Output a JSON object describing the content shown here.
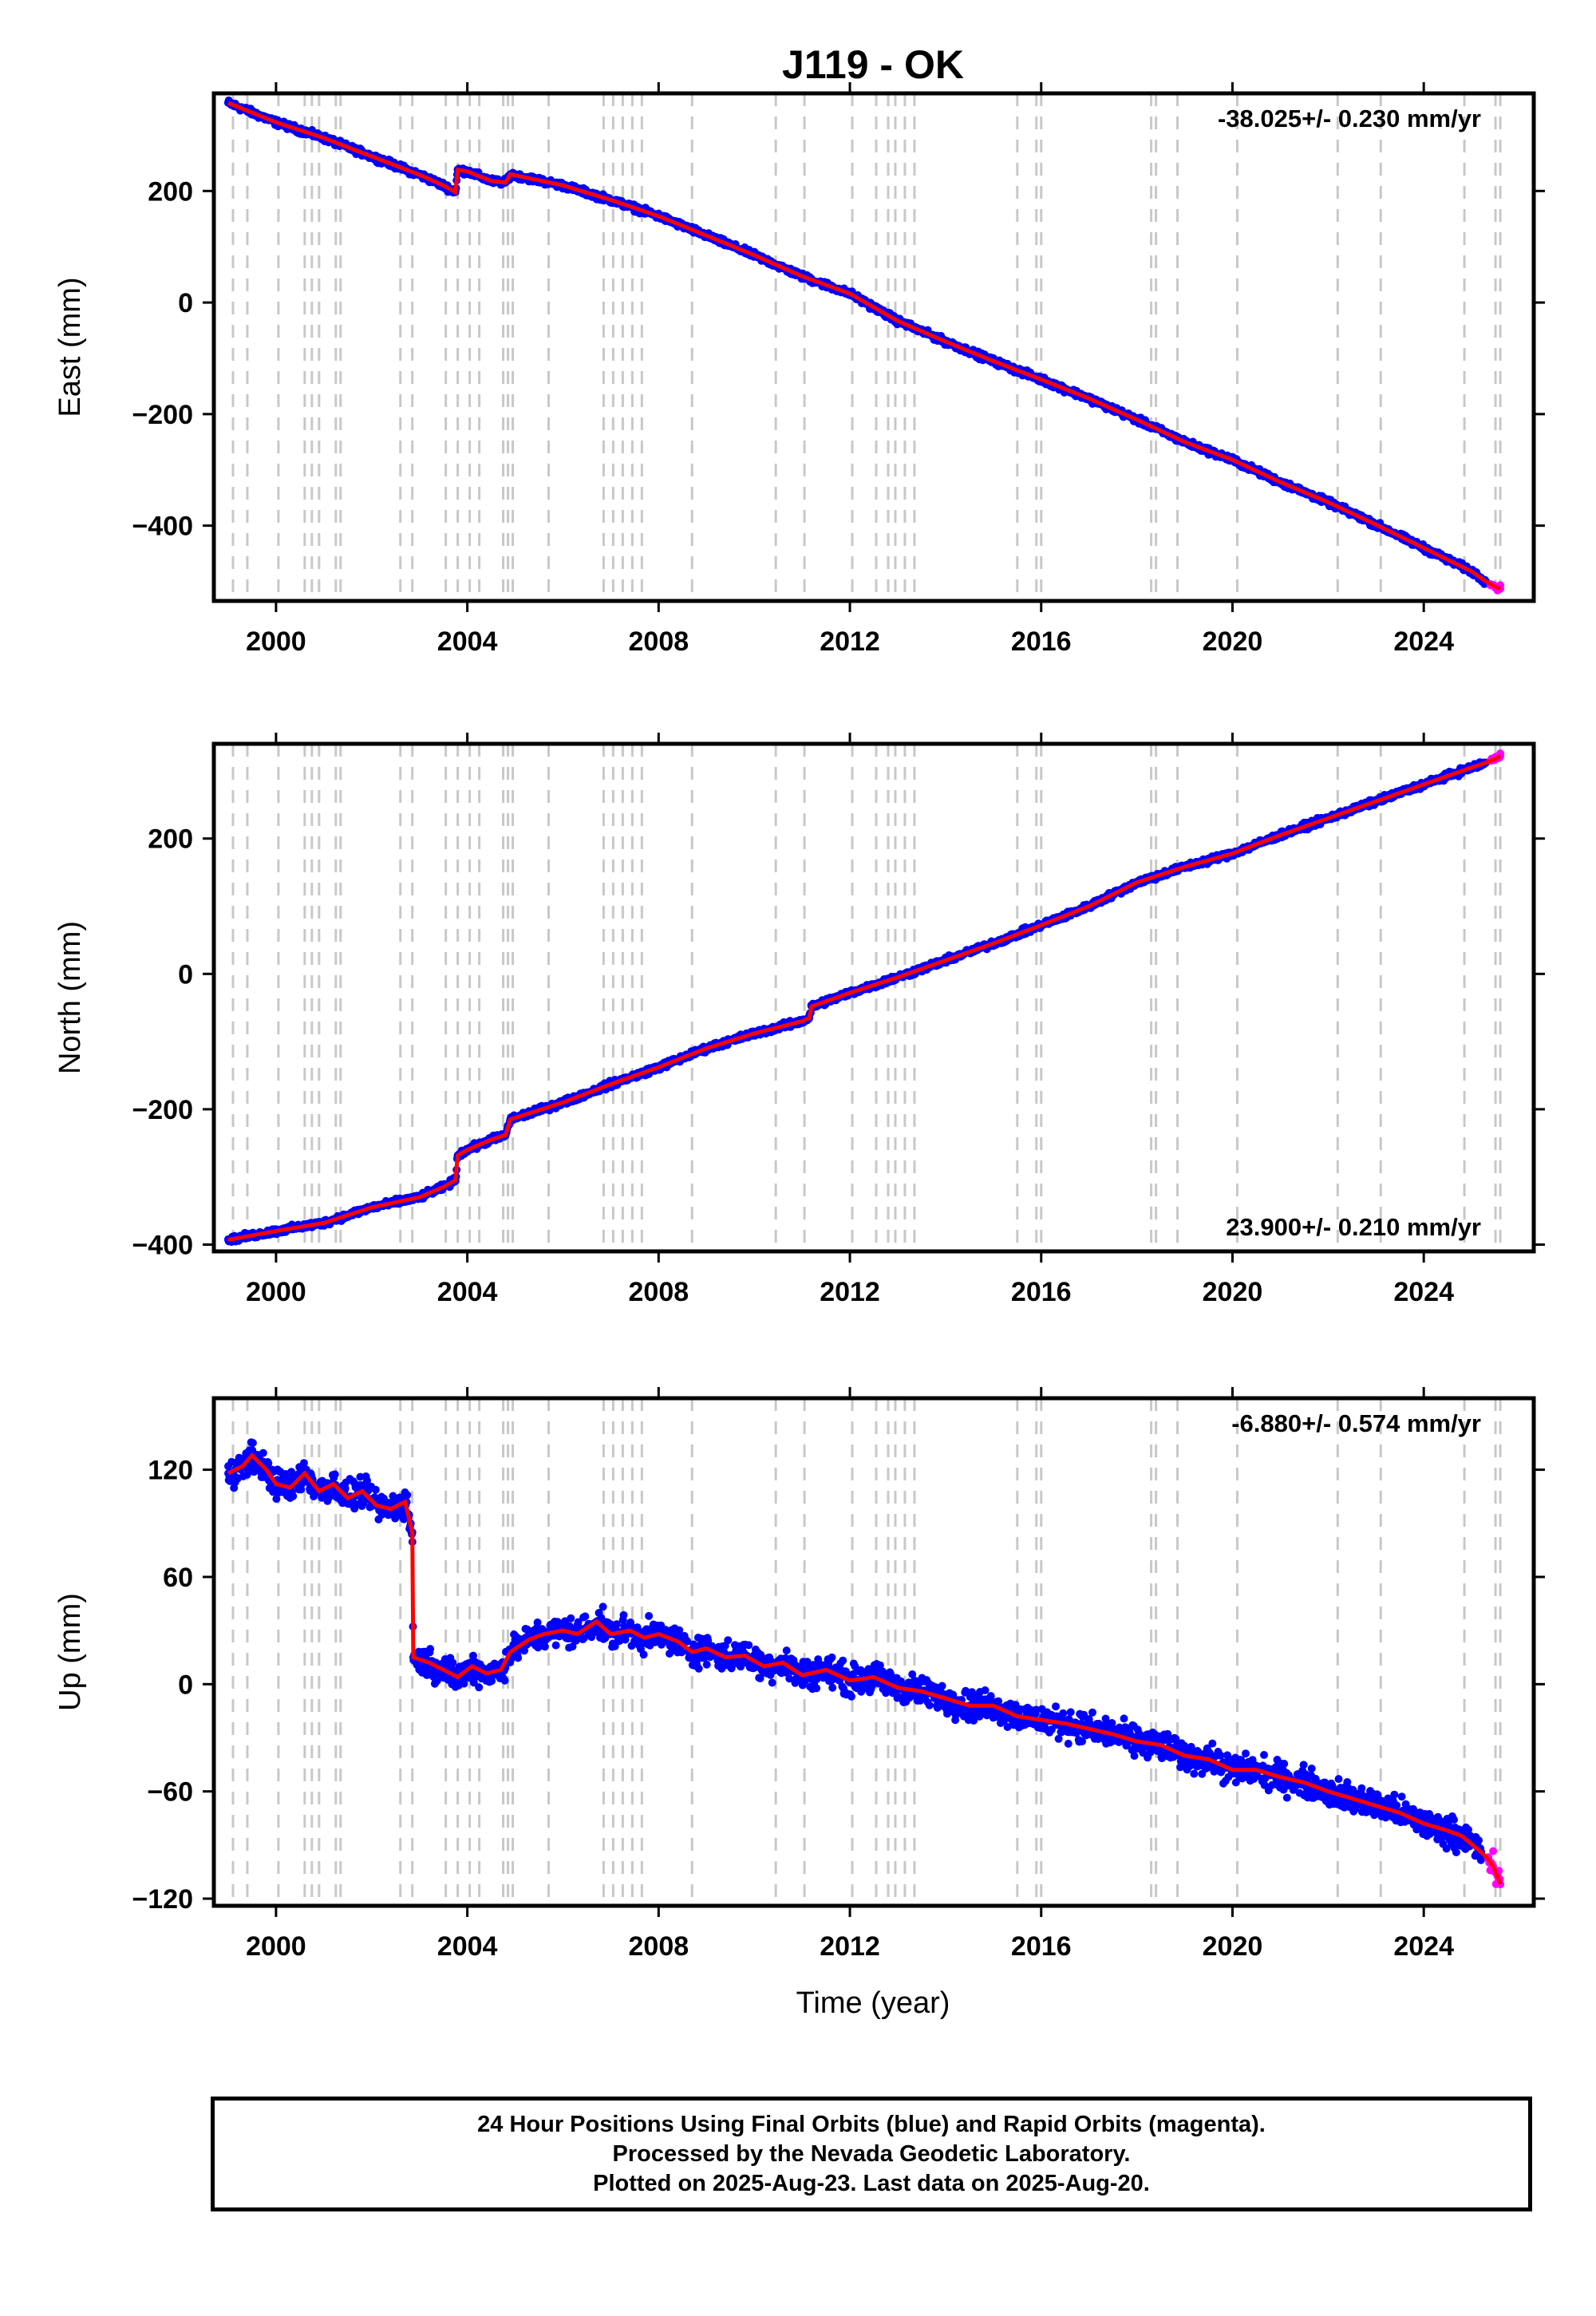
{
  "title": "J119 - OK",
  "x_label": "Time (year)",
  "footer": {
    "line1": "24 Hour Positions Using Final Orbits (blue) and Rapid Orbits (magenta).",
    "line2": "Processed by the Nevada Geodetic Laboratory.",
    "line3": "Plotted on 2025-Aug-23. Last data on 2025-Aug-20."
  },
  "colors": {
    "final_orbits": "#0000ff",
    "rapid_orbits": "#ff00ff",
    "model": "#ff0000",
    "event_lines": "#c8c8c8"
  },
  "chart_data": [
    {
      "type": "scatter",
      "component": "East",
      "ylabel": "East (mm)",
      "xlabel": "",
      "xlim": [
        1998.7,
        2026.3
      ],
      "ylim": [
        -535,
        375
      ],
      "yticks": [
        200,
        0,
        -200,
        -400
      ],
      "xticks": [
        2000,
        2004,
        2008,
        2012,
        2016,
        2020,
        2024
      ],
      "rate_label": "-38.025+/- 0.230 mm/yr",
      "rate_position": "top-right",
      "series": [
        {
          "name": "Final Orbits",
          "color": "#0000ff",
          "x": [
            1999.0,
            2000.0,
            2001.0,
            2002.0,
            2003.0,
            2003.5,
            2003.75,
            2003.8,
            2004.0,
            2004.5,
            2004.8,
            2004.9,
            2005.0,
            2006.0,
            2007.0,
            2008.0,
            2009.0,
            2010.0,
            2011.0,
            2012.0,
            2013.0,
            2014.0,
            2015.0,
            2016.0,
            2017.0,
            2018.0,
            2019.0,
            2020.0,
            2021.0,
            2022.0,
            2023.0,
            2024.0,
            2025.0,
            2025.3
          ],
          "values": [
            358,
            323,
            295,
            262,
            229,
            210,
            198,
            238,
            235,
            218,
            215,
            230,
            228,
            210,
            184,
            155,
            120,
            85,
            47,
            16,
            -33,
            -70,
            -105,
            -138,
            -172,
            -210,
            -250,
            -282,
            -322,
            -358,
            -398,
            -440,
            -482,
            -500
          ]
        },
        {
          "name": "Rapid Orbits",
          "color": "#ff00ff",
          "x": [
            2025.4,
            2025.5,
            2025.6
          ],
          "values": [
            -505,
            -510,
            -513
          ]
        }
      ],
      "event_years": [
        1999.1,
        1999.4,
        2000.05,
        2000.6,
        2000.75,
        2000.9,
        2001.25,
        2001.35,
        2002.6,
        2002.85,
        2003.55,
        2003.8,
        2004.05,
        2004.25,
        2004.75,
        2004.85,
        2004.95,
        2005.7,
        2006.85,
        2007.05,
        2007.25,
        2007.45,
        2007.65,
        2008.7,
        2010.45,
        2011.05,
        2012.05,
        2012.55,
        2012.8,
        2012.95,
        2013.15,
        2013.35,
        2015.5,
        2015.9,
        2016.0,
        2018.3,
        2018.4,
        2018.85,
        2020.1,
        2022.2,
        2023.1,
        2024.85,
        2025.5,
        2025.6
      ]
    },
    {
      "type": "scatter",
      "component": "North",
      "ylabel": "North (mm)",
      "xlabel": "",
      "xlim": [
        1998.7,
        2026.3
      ],
      "ylim": [
        -410,
        340
      ],
      "yticks": [
        200,
        0,
        -200,
        -400
      ],
      "xticks": [
        2000,
        2004,
        2008,
        2012,
        2016,
        2020,
        2024
      ],
      "rate_label": "23.900+/- 0.210 mm/yr",
      "rate_position": "bottom-right",
      "series": [
        {
          "name": "Final Orbits",
          "color": "#0000ff",
          "x": [
            1999.0,
            2000.0,
            2001.0,
            2002.0,
            2003.0,
            2003.5,
            2003.75,
            2003.8,
            2004.0,
            2004.5,
            2004.8,
            2004.9,
            2006.0,
            2007.0,
            2008.0,
            2009.0,
            2010.0,
            2011.0,
            2011.15,
            2011.2,
            2012.0,
            2013.0,
            2014.0,
            2015.0,
            2016.0,
            2017.0,
            2018.0,
            2019.0,
            2020.0,
            2021.0,
            2022.0,
            2023.0,
            2024.0,
            2025.0,
            2025.3
          ],
          "values": [
            -393,
            -380,
            -368,
            -345,
            -330,
            -315,
            -305,
            -268,
            -260,
            -245,
            -238,
            -215,
            -190,
            -163,
            -138,
            -110,
            -88,
            -70,
            -65,
            -48,
            -28,
            -5,
            20,
            45,
            72,
            100,
            135,
            158,
            178,
            205,
            230,
            255,
            280,
            305,
            312
          ]
        },
        {
          "name": "Rapid Orbits",
          "color": "#ff00ff",
          "x": [
            2025.4,
            2025.5,
            2025.6
          ],
          "values": [
            315,
            318,
            322
          ]
        }
      ],
      "event_years": [
        1999.1,
        1999.4,
        2000.05,
        2000.6,
        2000.75,
        2000.9,
        2001.25,
        2001.35,
        2002.6,
        2002.85,
        2003.55,
        2003.8,
        2004.05,
        2004.25,
        2004.75,
        2004.85,
        2004.95,
        2005.7,
        2006.85,
        2007.05,
        2007.25,
        2007.45,
        2007.65,
        2008.7,
        2010.45,
        2011.05,
        2012.05,
        2012.55,
        2012.8,
        2012.95,
        2013.15,
        2013.35,
        2015.5,
        2015.9,
        2016.0,
        2018.3,
        2018.4,
        2018.85,
        2020.1,
        2022.2,
        2023.1,
        2024.85,
        2025.5,
        2025.6
      ]
    },
    {
      "type": "scatter",
      "component": "Up",
      "ylabel": "Up (mm)",
      "xlabel": "Time (year)",
      "xlim": [
        1998.7,
        2026.3
      ],
      "ylim": [
        -124,
        160
      ],
      "yticks": [
        120,
        60,
        0,
        -60,
        -120
      ],
      "xticks": [
        2000,
        2004,
        2008,
        2012,
        2016,
        2020,
        2024
      ],
      "rate_label": "-6.880+/- 0.574 mm/yr",
      "rate_position": "top-right",
      "series": [
        {
          "name": "Final Orbits",
          "color": "#0000ff",
          "x": [
            1999.0,
            1999.3,
            1999.5,
            1999.8,
            2000.0,
            2000.3,
            2000.6,
            2000.9,
            2001.2,
            2001.5,
            2001.8,
            2002.1,
            2002.4,
            2002.7,
            2002.85,
            2002.87,
            2003.2,
            2003.5,
            2003.8,
            2004.1,
            2004.4,
            2004.7,
            2004.9,
            2005.3,
            2005.6,
            2006.0,
            2006.3,
            2006.7,
            2007.0,
            2007.4,
            2007.7,
            2008.0,
            2008.4,
            2008.7,
            2009.0,
            2009.4,
            2009.8,
            2010.2,
            2010.6,
            2011.0,
            2011.5,
            2012.0,
            2012.5,
            2013.0,
            2013.5,
            2014.0,
            2014.5,
            2015.0,
            2015.5,
            2016.0,
            2016.5,
            2017.0,
            2017.5,
            2018.0,
            2018.5,
            2019.0,
            2019.5,
            2020.0,
            2020.5,
            2021.0,
            2021.5,
            2022.0,
            2022.5,
            2023.0,
            2023.5,
            2024.0,
            2024.5,
            2024.8,
            2025.2
          ],
          "values": [
            118,
            122,
            128,
            120,
            112,
            110,
            118,
            108,
            112,
            104,
            108,
            100,
            98,
            102,
            85,
            15,
            12,
            8,
            4,
            10,
            6,
            8,
            18,
            25,
            28,
            30,
            28,
            35,
            28,
            30,
            26,
            28,
            24,
            18,
            20,
            15,
            16,
            10,
            12,
            5,
            8,
            2,
            4,
            -2,
            -4,
            -8,
            -12,
            -12,
            -18,
            -20,
            -22,
            -25,
            -28,
            -32,
            -34,
            -40,
            -42,
            -48,
            -48,
            -52,
            -55,
            -60,
            -64,
            -68,
            -72,
            -78,
            -82,
            -85,
            -94
          ]
        },
        {
          "name": "Rapid Orbits",
          "color": "#ff00ff",
          "x": [
            2025.35,
            2025.45,
            2025.55,
            2025.6
          ],
          "values": [
            -98,
            -102,
            -108,
            -112
          ]
        }
      ],
      "event_years": [
        1999.1,
        1999.4,
        2000.05,
        2000.6,
        2000.75,
        2000.9,
        2001.25,
        2001.35,
        2002.6,
        2002.85,
        2003.55,
        2003.8,
        2004.05,
        2004.25,
        2004.75,
        2004.85,
        2004.95,
        2005.7,
        2006.85,
        2007.05,
        2007.25,
        2007.45,
        2007.65,
        2008.7,
        2010.45,
        2011.05,
        2012.05,
        2012.55,
        2012.8,
        2012.95,
        2013.15,
        2013.35,
        2015.5,
        2015.9,
        2016.0,
        2018.3,
        2018.4,
        2018.85,
        2020.1,
        2022.2,
        2023.1,
        2024.85,
        2025.5,
        2025.6
      ]
    }
  ]
}
